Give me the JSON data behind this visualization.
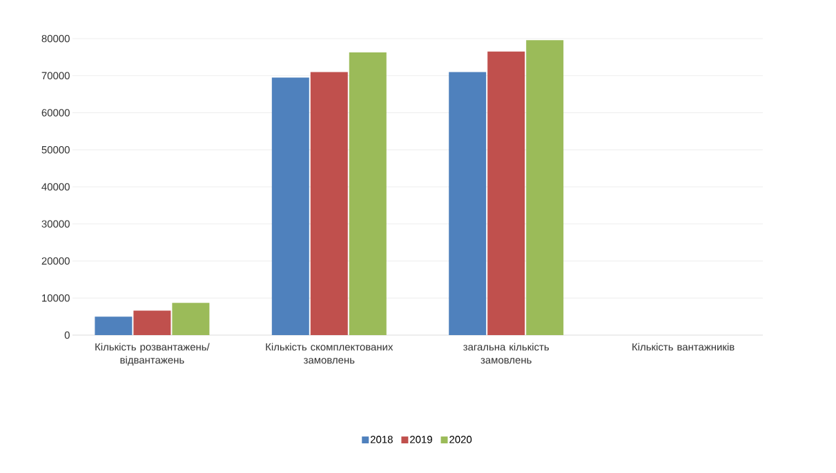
{
  "chart_data": {
    "type": "bar",
    "categories": [
      "Кількість розвантажень/ відвантажень",
      "Кількість скомплектованих замовлень",
      "загальна кількість замовлень",
      "Кількість вантажників"
    ],
    "series": [
      {
        "name": "2018",
        "color": "#4f81bd",
        "values": [
          5000,
          69500,
          71000,
          0
        ]
      },
      {
        "name": "2019",
        "color": "#c0504d",
        "values": [
          6600,
          71000,
          76500,
          0
        ]
      },
      {
        "name": "2020",
        "color": "#9bbb59",
        "values": [
          8700,
          76300,
          79600,
          0
        ]
      }
    ],
    "ylim": [
      0,
      80000
    ],
    "yticks": [
      0,
      10000,
      20000,
      30000,
      40000,
      50000,
      60000,
      70000,
      80000
    ],
    "grid": "y",
    "legend": "bottom"
  }
}
